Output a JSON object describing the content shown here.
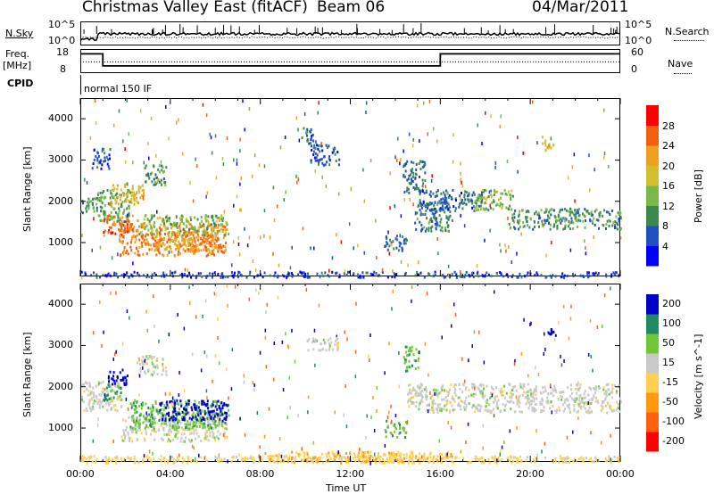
{
  "header": {
    "station": "Christmas Valley East (fitACF)",
    "beam": "Beam 06",
    "date": "04/Mar/2011"
  },
  "side_labels": {
    "nsky": "N.Sky",
    "nsearch": "N.Search",
    "freq": "Freq.",
    "mhz": "[MHz]",
    "nave": "Nave",
    "cpid": "CPID",
    "cpid_value": "normal 150 IF"
  },
  "noise_panel": {
    "left_ticks": [
      "10^5",
      "10^0"
    ],
    "right_ticks": [
      "10^5",
      "10^0"
    ]
  },
  "freq_panel": {
    "left_ticks": [
      "18",
      "8"
    ],
    "right_ticks": [
      "60",
      "0"
    ],
    "freq_steps": [
      [
        0,
        16
      ],
      [
        1.0,
        11
      ],
      [
        16.0,
        16
      ],
      [
        24,
        16
      ]
    ],
    "nave_level": 28
  },
  "colors": {
    "power_scale": [
      "#0000ff",
      "#2050c0",
      "#3a8a50",
      "#7ab84a",
      "#d0c030",
      "#f0a020",
      "#f06010",
      "#ff0000"
    ],
    "velocity_scale": [
      "#ff0000",
      "#ff6010",
      "#ff9a10",
      "#ffd050",
      "#c8c8c8",
      "#70c838",
      "#208a60",
      "#0000c8"
    ],
    "ground_scatter": "#c8c8c8"
  },
  "chart_data": [
    {
      "type": "heatmap",
      "name": "Power",
      "ylabel": "Slant Range [km]",
      "xlim": [
        0,
        24
      ],
      "ylim": [
        180,
        4500
      ],
      "ytick_labels": [
        "1000",
        "2000",
        "3000",
        "4000"
      ],
      "yticks": [
        1000,
        2000,
        3000,
        4000
      ],
      "colorbar": {
        "label": "Power [dB]",
        "range": [
          0,
          32
        ],
        "tick_labels": [
          "4",
          "8",
          "12",
          "16",
          "20",
          "24",
          "28"
        ],
        "ticks": [
          4,
          8,
          12,
          16,
          20,
          24,
          28
        ]
      },
      "regions": [
        {
          "t0": 0.0,
          "t1": 1.0,
          "r0": 1750,
          "r1": 2150,
          "v": 10
        },
        {
          "t0": 0.7,
          "t1": 2.2,
          "r0": 1500,
          "r1": 2300,
          "v": 12
        },
        {
          "t0": 1.0,
          "t1": 2.3,
          "r0": 1200,
          "r1": 1700,
          "v": 26
        },
        {
          "t0": 1.3,
          "t1": 2.8,
          "r0": 1950,
          "r1": 2450,
          "v": 20
        },
        {
          "t0": 1.7,
          "t1": 6.5,
          "r0": 700,
          "r1": 1500,
          "v": 24
        },
        {
          "t0": 2.5,
          "t1": 6.6,
          "r0": 1200,
          "r1": 1700,
          "v": 14
        },
        {
          "t0": 3.2,
          "t1": 6.0,
          "r0": 800,
          "r1": 1300,
          "v": 22
        },
        {
          "t0": 2.8,
          "t1": 3.8,
          "r0": 2400,
          "r1": 2900,
          "v": 10
        },
        {
          "t0": 0.5,
          "t1": 1.3,
          "r0": 2800,
          "r1": 3300,
          "v": 6
        },
        {
          "t0": 10.2,
          "t1": 11.5,
          "r0": 2900,
          "r1": 3400,
          "v": 6
        },
        {
          "t0": 9.8,
          "t1": 10.4,
          "r0": 3400,
          "r1": 3800,
          "v": 6
        },
        {
          "t0": 13.5,
          "t1": 14.5,
          "r0": 800,
          "r1": 1200,
          "v": 8
        },
        {
          "t0": 14.3,
          "t1": 15.3,
          "r0": 2200,
          "r1": 3000,
          "v": 8
        },
        {
          "t0": 14.8,
          "t1": 16.5,
          "r0": 1300,
          "r1": 2000,
          "v": 9
        },
        {
          "t0": 15.0,
          "t1": 18.0,
          "r0": 1800,
          "r1": 2300,
          "v": 7
        },
        {
          "t0": 17.5,
          "t1": 19.2,
          "r0": 1800,
          "r1": 2300,
          "v": 14
        },
        {
          "t0": 19.0,
          "t1": 24.0,
          "r0": 1350,
          "r1": 1850,
          "v": 10
        },
        {
          "t0": 20.5,
          "t1": 21.0,
          "r0": 3200,
          "r1": 3600,
          "v": 18
        },
        {
          "t0": 0.0,
          "t1": 24.0,
          "r0": 180,
          "r1": 320,
          "v": 5
        }
      ]
    },
    {
      "type": "heatmap",
      "name": "Velocity",
      "ylabel": "Slant Range [km]",
      "xlabel": "Time UT",
      "xlim": [
        0,
        24
      ],
      "ylim": [
        180,
        4500
      ],
      "xtick_labels": [
        "00:00",
        "04:00",
        "08:00",
        "12:00",
        "16:00",
        "20:00",
        "00:00"
      ],
      "xticks": [
        0,
        4,
        8,
        12,
        16,
        20,
        24
      ],
      "ytick_labels": [
        "1000",
        "2000",
        "3000",
        "4000"
      ],
      "yticks": [
        1000,
        2000,
        3000,
        4000
      ],
      "colorbar": {
        "label": "Velocity [m s^-1]",
        "range": [
          -250,
          250
        ],
        "tick_labels": [
          "-200",
          "-100",
          "-50",
          "-15",
          "15",
          "50",
          "100",
          "200"
        ]
      },
      "regions": [
        {
          "t0": 0.0,
          "t1": 1.8,
          "r0": 1450,
          "r1": 2150,
          "v": 0
        },
        {
          "t0": 1.0,
          "t1": 1.8,
          "r0": 1700,
          "r1": 2100,
          "v": 60
        },
        {
          "t0": 1.2,
          "t1": 2.1,
          "r0": 2050,
          "r1": 2450,
          "v": 150
        },
        {
          "t0": 1.8,
          "t1": 6.5,
          "r0": 700,
          "r1": 1300,
          "v": 0
        },
        {
          "t0": 2.2,
          "t1": 6.6,
          "r0": 1000,
          "r1": 1700,
          "v": 40
        },
        {
          "t0": 3.5,
          "t1": 6.5,
          "r0": 1200,
          "r1": 1700,
          "v": 140
        },
        {
          "t0": 2.5,
          "t1": 3.8,
          "r0": 2300,
          "r1": 2800,
          "v": 0
        },
        {
          "t0": 10.0,
          "t1": 11.5,
          "r0": 2900,
          "r1": 3200,
          "v": 0
        },
        {
          "t0": 13.5,
          "t1": 14.5,
          "r0": 800,
          "r1": 1200,
          "v": 40
        },
        {
          "t0": 14.3,
          "t1": 15.0,
          "r0": 2400,
          "r1": 3000,
          "v": 40
        },
        {
          "t0": 14.5,
          "t1": 24.0,
          "r0": 1400,
          "r1": 2100,
          "v": 0
        },
        {
          "t0": 20.7,
          "t1": 21.1,
          "r0": 3200,
          "r1": 3500,
          "v": 180
        },
        {
          "t0": 0.0,
          "t1": 24.0,
          "r0": 180,
          "r1": 350,
          "v": -30
        },
        {
          "t0": 8.0,
          "t1": 16.5,
          "r0": 180,
          "r1": 450,
          "v": -40
        }
      ]
    }
  ]
}
